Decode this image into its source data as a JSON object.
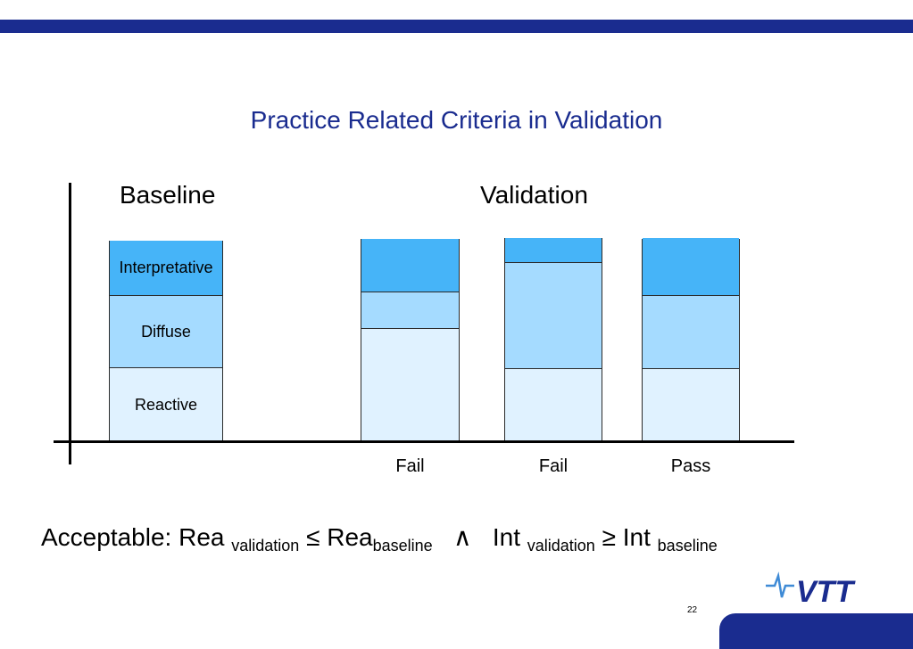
{
  "slide": {
    "title": "Practice Related Criteria in Validation",
    "page_number": "22",
    "logo_text": "VTT"
  },
  "sections": {
    "baseline": "Baseline",
    "validation": "Validation"
  },
  "colors": {
    "brand_band": "#1a2c8f",
    "interpretative": "#46b4f8",
    "diffuse": "#a5dbff",
    "reactive": "#e0f2ff"
  },
  "chart_data": {
    "type": "bar",
    "stacked": true,
    "categories": [
      "",
      "Fail",
      "Fail",
      "Pass"
    ],
    "series": [
      {
        "name": "Reactive",
        "values": [
          0.37,
          0.56,
          0.36,
          0.36
        ]
      },
      {
        "name": "Diffuse",
        "values": [
          0.36,
          0.18,
          0.52,
          0.36
        ]
      },
      {
        "name": "Interpretative",
        "values": [
          0.27,
          0.26,
          0.12,
          0.28
        ]
      }
    ],
    "title": "Practice Related Criteria in Validation",
    "xlabel": "",
    "ylabel": "",
    "grid": false
  },
  "formula": {
    "prefix": "Acceptable: Rea ",
    "sub1": "validation",
    "op1": " ≤ Rea",
    "sub2": "baseline",
    "and": "   ∧   Int ",
    "sub3": "validation",
    "op2": " ≥ Int ",
    "sub4": "baseline"
  }
}
